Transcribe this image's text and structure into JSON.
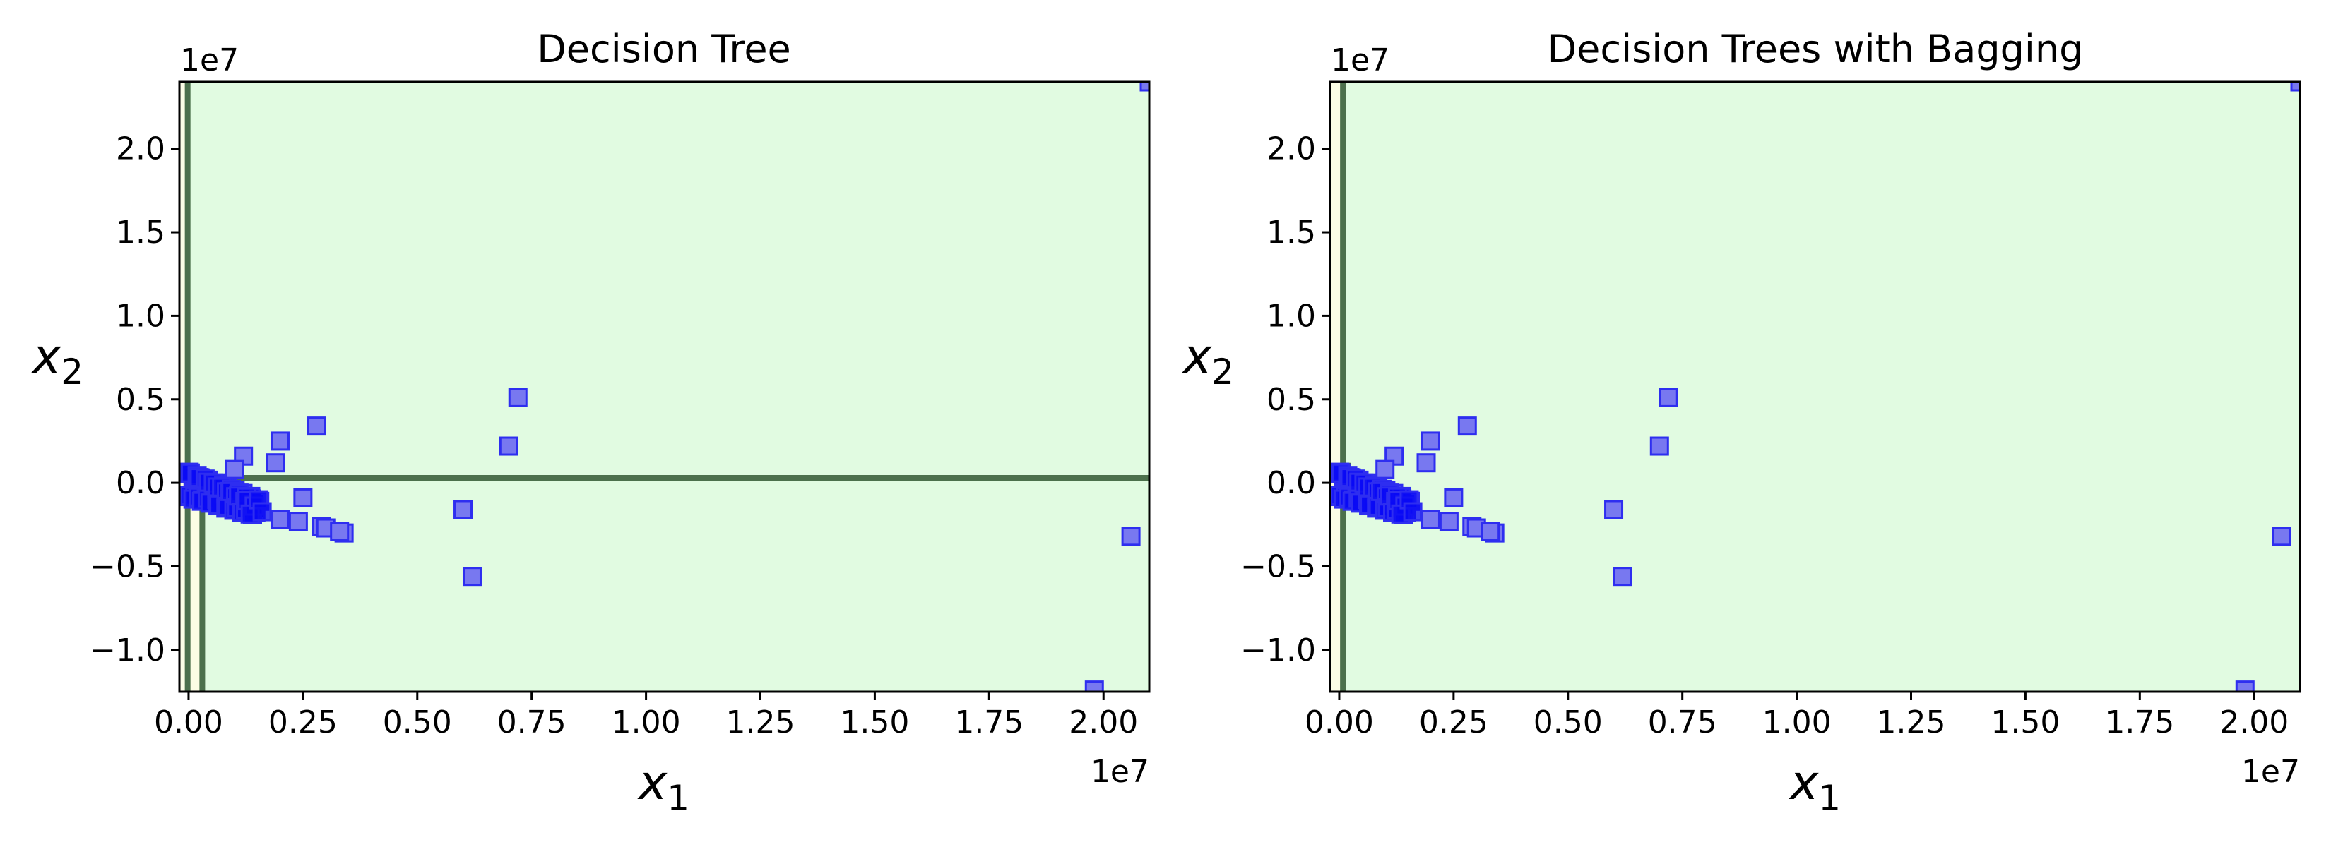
{
  "colors": {
    "background_region": "#e1fbe1",
    "narrow_region": "#fbfde5",
    "boundary": "#4c704c",
    "marker_fill": "#7878f0",
    "marker_edge": "#2e2ef0",
    "dense_cluster": "#0a0af5"
  },
  "chart_data": [
    {
      "type": "scatter",
      "title": "Decision Tree",
      "xlabel": "x",
      "xlabel_sub": "1",
      "ylabel": "x",
      "ylabel_sub": "2",
      "x_offset_text": "1e7",
      "y_offset_text": "1e7",
      "xlim": [
        -200000,
        21000000
      ],
      "ylim": [
        -12500000,
        24000000
      ],
      "xticks": [
        0,
        2500000,
        5000000,
        7500000,
        10000000,
        12500000,
        15000000,
        17500000,
        20000000
      ],
      "xtick_labels": [
        "0.00",
        "0.25",
        "0.50",
        "0.75",
        "1.00",
        "1.25",
        "1.50",
        "1.75",
        "2.00"
      ],
      "yticks": [
        -10000000,
        -5000000,
        0,
        5000000,
        10000000,
        15000000,
        20000000
      ],
      "ytick_labels": [
        "−1.0",
        "−0.5",
        "0.0",
        "0.5",
        "1.0",
        "1.5",
        "2.0"
      ],
      "grid": false,
      "legend": "none",
      "decision_regions": [
        {
          "x_range": [
            -200000,
            -20000
          ],
          "y_range": [
            -12500000,
            24000000
          ],
          "class": "narrow"
        },
        {
          "x_range": [
            -20000,
            300000
          ],
          "y_range": [
            -12500000,
            300000
          ],
          "class": "narrow"
        }
      ],
      "decision_boundaries": [
        {
          "orientation": "vertical",
          "x": -20000,
          "y_range": [
            -12500000,
            24000000
          ]
        },
        {
          "orientation": "horizontal",
          "y": 300000,
          "x_range": [
            -20000,
            21000000
          ]
        },
        {
          "orientation": "vertical",
          "x": 300000,
          "y_range": [
            -12500000,
            300000
          ]
        }
      ],
      "dense_cluster": {
        "x_range": [
          0,
          1500000
        ],
        "y_center_start": 0,
        "y_center_end": -1500000,
        "spread": 800000
      },
      "points": [
        {
          "x": 1200000,
          "y": 1600000
        },
        {
          "x": 1000000,
          "y": 800000
        },
        {
          "x": 1900000,
          "y": 1200000
        },
        {
          "x": 2000000,
          "y": 2500000
        },
        {
          "x": 2800000,
          "y": 3400000
        },
        {
          "x": 2500000,
          "y": -900000
        },
        {
          "x": 2400000,
          "y": -2300000
        },
        {
          "x": 2900000,
          "y": -2600000
        },
        {
          "x": 3000000,
          "y": -2700000
        },
        {
          "x": 3400000,
          "y": -3000000
        },
        {
          "x": 3300000,
          "y": -2900000
        },
        {
          "x": 2000000,
          "y": -2200000
        },
        {
          "x": 6000000,
          "y": -1600000
        },
        {
          "x": 6200000,
          "y": -5600000
        },
        {
          "x": 7000000,
          "y": 2200000
        },
        {
          "x": 7200000,
          "y": 5100000
        },
        {
          "x": 19800000,
          "y": -12400000
        },
        {
          "x": 20600000,
          "y": -3200000
        },
        {
          "x": 21000000,
          "y": 24000000
        }
      ]
    },
    {
      "type": "scatter",
      "title": "Decision Trees with Bagging",
      "xlabel": "x",
      "xlabel_sub": "1",
      "ylabel": "x",
      "ylabel_sub": "2",
      "x_offset_text": "1e7",
      "y_offset_text": "1e7",
      "xlim": [
        -200000,
        21000000
      ],
      "ylim": [
        -12500000,
        24000000
      ],
      "xticks": [
        0,
        2500000,
        5000000,
        7500000,
        10000000,
        12500000,
        15000000,
        17500000,
        20000000
      ],
      "xtick_labels": [
        "0.00",
        "0.25",
        "0.50",
        "0.75",
        "1.00",
        "1.25",
        "1.50",
        "1.75",
        "2.00"
      ],
      "yticks": [
        -10000000,
        -5000000,
        0,
        5000000,
        10000000,
        15000000,
        20000000
      ],
      "ytick_labels": [
        "−1.0",
        "−0.5",
        "0.0",
        "0.5",
        "1.0",
        "1.5",
        "2.0"
      ],
      "grid": false,
      "legend": "none",
      "decision_regions": [
        {
          "x_range": [
            -200000,
            80000
          ],
          "y_range": [
            -12500000,
            24000000
          ],
          "class": "narrow"
        }
      ],
      "decision_boundaries": [
        {
          "orientation": "vertical",
          "x": 80000,
          "y_range": [
            -12500000,
            24000000
          ]
        },
        {
          "orientation": "vertical",
          "x": 200000,
          "y_range": [
            -1000000,
            1200000
          ]
        }
      ],
      "dense_cluster": {
        "x_range": [
          0,
          1500000
        ],
        "y_center_start": 0,
        "y_center_end": -1500000,
        "spread": 800000
      },
      "points": [
        {
          "x": 1200000,
          "y": 1600000
        },
        {
          "x": 1000000,
          "y": 800000
        },
        {
          "x": 1900000,
          "y": 1200000
        },
        {
          "x": 2000000,
          "y": 2500000
        },
        {
          "x": 2800000,
          "y": 3400000
        },
        {
          "x": 2500000,
          "y": -900000
        },
        {
          "x": 2400000,
          "y": -2300000
        },
        {
          "x": 2900000,
          "y": -2600000
        },
        {
          "x": 3000000,
          "y": -2700000
        },
        {
          "x": 3400000,
          "y": -3000000
        },
        {
          "x": 3300000,
          "y": -2900000
        },
        {
          "x": 2000000,
          "y": -2200000
        },
        {
          "x": 6000000,
          "y": -1600000
        },
        {
          "x": 6200000,
          "y": -5600000
        },
        {
          "x": 7000000,
          "y": 2200000
        },
        {
          "x": 7200000,
          "y": 5100000
        },
        {
          "x": 19800000,
          "y": -12400000
        },
        {
          "x": 20600000,
          "y": -3200000
        },
        {
          "x": 21000000,
          "y": 24000000
        }
      ]
    }
  ]
}
